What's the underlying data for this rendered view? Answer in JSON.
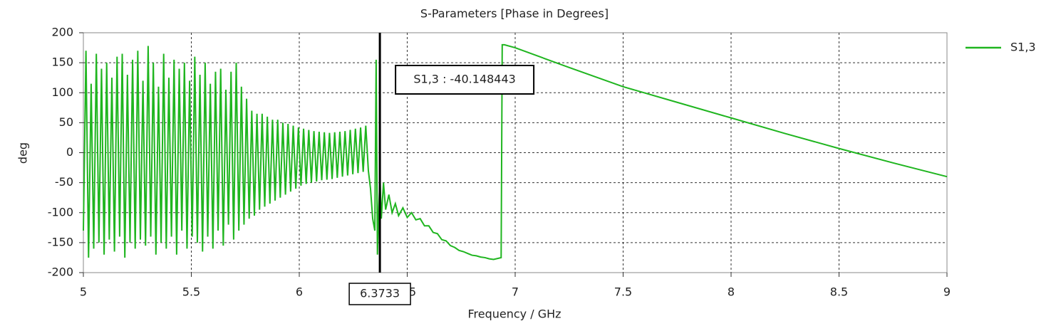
{
  "chart_data": {
    "type": "line",
    "title": "S-Parameters [Phase in Degrees]",
    "xlabel": "Frequency / GHz",
    "ylabel": "deg",
    "xlim": [
      5,
      9
    ],
    "ylim": [
      -200,
      200
    ],
    "xticks": [
      5,
      5.5,
      6,
      6.5,
      7,
      7.5,
      8,
      8.5,
      9
    ],
    "yticks": [
      -200,
      -150,
      -100,
      -50,
      0,
      50,
      100,
      150,
      200
    ],
    "grid": true,
    "legend": "right",
    "annotation": {
      "x": 6.3733,
      "text": "S1,3 : -40.148443"
    },
    "x": [
      5.0,
      5.012,
      5.024,
      5.036,
      5.048,
      5.06,
      5.072,
      5.084,
      5.096,
      5.108,
      5.12,
      5.132,
      5.144,
      5.156,
      5.168,
      5.18,
      5.192,
      5.204,
      5.216,
      5.228,
      5.24,
      5.252,
      5.264,
      5.276,
      5.288,
      5.3,
      5.312,
      5.324,
      5.336,
      5.348,
      5.36,
      5.372,
      5.384,
      5.396,
      5.408,
      5.42,
      5.432,
      5.444,
      5.456,
      5.468,
      5.48,
      5.492,
      5.504,
      5.516,
      5.528,
      5.54,
      5.552,
      5.564,
      5.576,
      5.588,
      5.6,
      5.612,
      5.624,
      5.636,
      5.648,
      5.66,
      5.672,
      5.684,
      5.696,
      5.708,
      5.72,
      5.732,
      5.744,
      5.756,
      5.768,
      5.78,
      5.792,
      5.804,
      5.816,
      5.828,
      5.84,
      5.852,
      5.864,
      5.876,
      5.888,
      5.9,
      5.912,
      5.924,
      5.936,
      5.948,
      5.96,
      5.972,
      5.984,
      5.996,
      6.008,
      6.02,
      6.032,
      6.044,
      6.056,
      6.068,
      6.08,
      6.092,
      6.104,
      6.116,
      6.128,
      6.14,
      6.152,
      6.164,
      6.176,
      6.188,
      6.2,
      6.212,
      6.224,
      6.236,
      6.248,
      6.26,
      6.272,
      6.284,
      6.296,
      6.308,
      6.32,
      6.33,
      6.34,
      6.35,
      6.356,
      6.362,
      6.368,
      6.374,
      6.38,
      6.39,
      6.4,
      6.415,
      6.43,
      6.445,
      6.46,
      6.48,
      6.5,
      6.52,
      6.54,
      6.56,
      6.58,
      6.6,
      6.62,
      6.64,
      6.66,
      6.68,
      6.7,
      6.72,
      6.74,
      6.76,
      6.78,
      6.8,
      6.82,
      6.84,
      6.86,
      6.88,
      6.9,
      6.935,
      6.94,
      6.95,
      7.0,
      7.25,
      7.5,
      7.75,
      8.0,
      8.25,
      8.5,
      8.75,
      9.0
    ],
    "series": [
      {
        "name": "S1,3",
        "color": "#1fb51f",
        "values": [
          -130,
          170,
          -175,
          115,
          -160,
          165,
          -150,
          140,
          -170,
          150,
          -145,
          125,
          -165,
          160,
          -140,
          165,
          -175,
          130,
          -150,
          155,
          -160,
          170,
          -145,
          120,
          -155,
          178,
          -140,
          150,
          -170,
          110,
          -150,
          165,
          -160,
          125,
          -140,
          155,
          -170,
          140,
          -130,
          150,
          -160,
          120,
          -140,
          160,
          -150,
          130,
          -165,
          150,
          -140,
          115,
          -160,
          135,
          -130,
          140,
          -155,
          105,
          -120,
          135,
          -145,
          150,
          -130,
          110,
          -120,
          90,
          -110,
          70,
          -105,
          65,
          -95,
          65,
          -90,
          60,
          -85,
          55,
          -80,
          55,
          -75,
          50,
          -70,
          48,
          -65,
          45,
          -60,
          42,
          -55,
          40,
          -52,
          38,
          -50,
          36,
          -48,
          35,
          -46,
          34,
          -45,
          33,
          -44,
          34,
          -42,
          35,
          -40,
          36,
          -38,
          38,
          -36,
          40,
          -34,
          42,
          -32,
          45,
          -30,
          -60,
          -110,
          -130,
          155,
          -170,
          -90,
          -45,
          -110,
          -50,
          -95,
          -70,
          -100,
          -85,
          -105,
          -92,
          -108,
          -100,
          -112,
          -110,
          -122,
          -122,
          -133,
          -135,
          -145,
          -147,
          -155,
          -158,
          -163,
          -165,
          -168,
          -171,
          -172,
          -174,
          -175,
          -177,
          -178,
          -175,
          180,
          180,
          175,
          142,
          110,
          84,
          58,
          32,
          7,
          -17,
          -40
        ]
      }
    ]
  }
}
